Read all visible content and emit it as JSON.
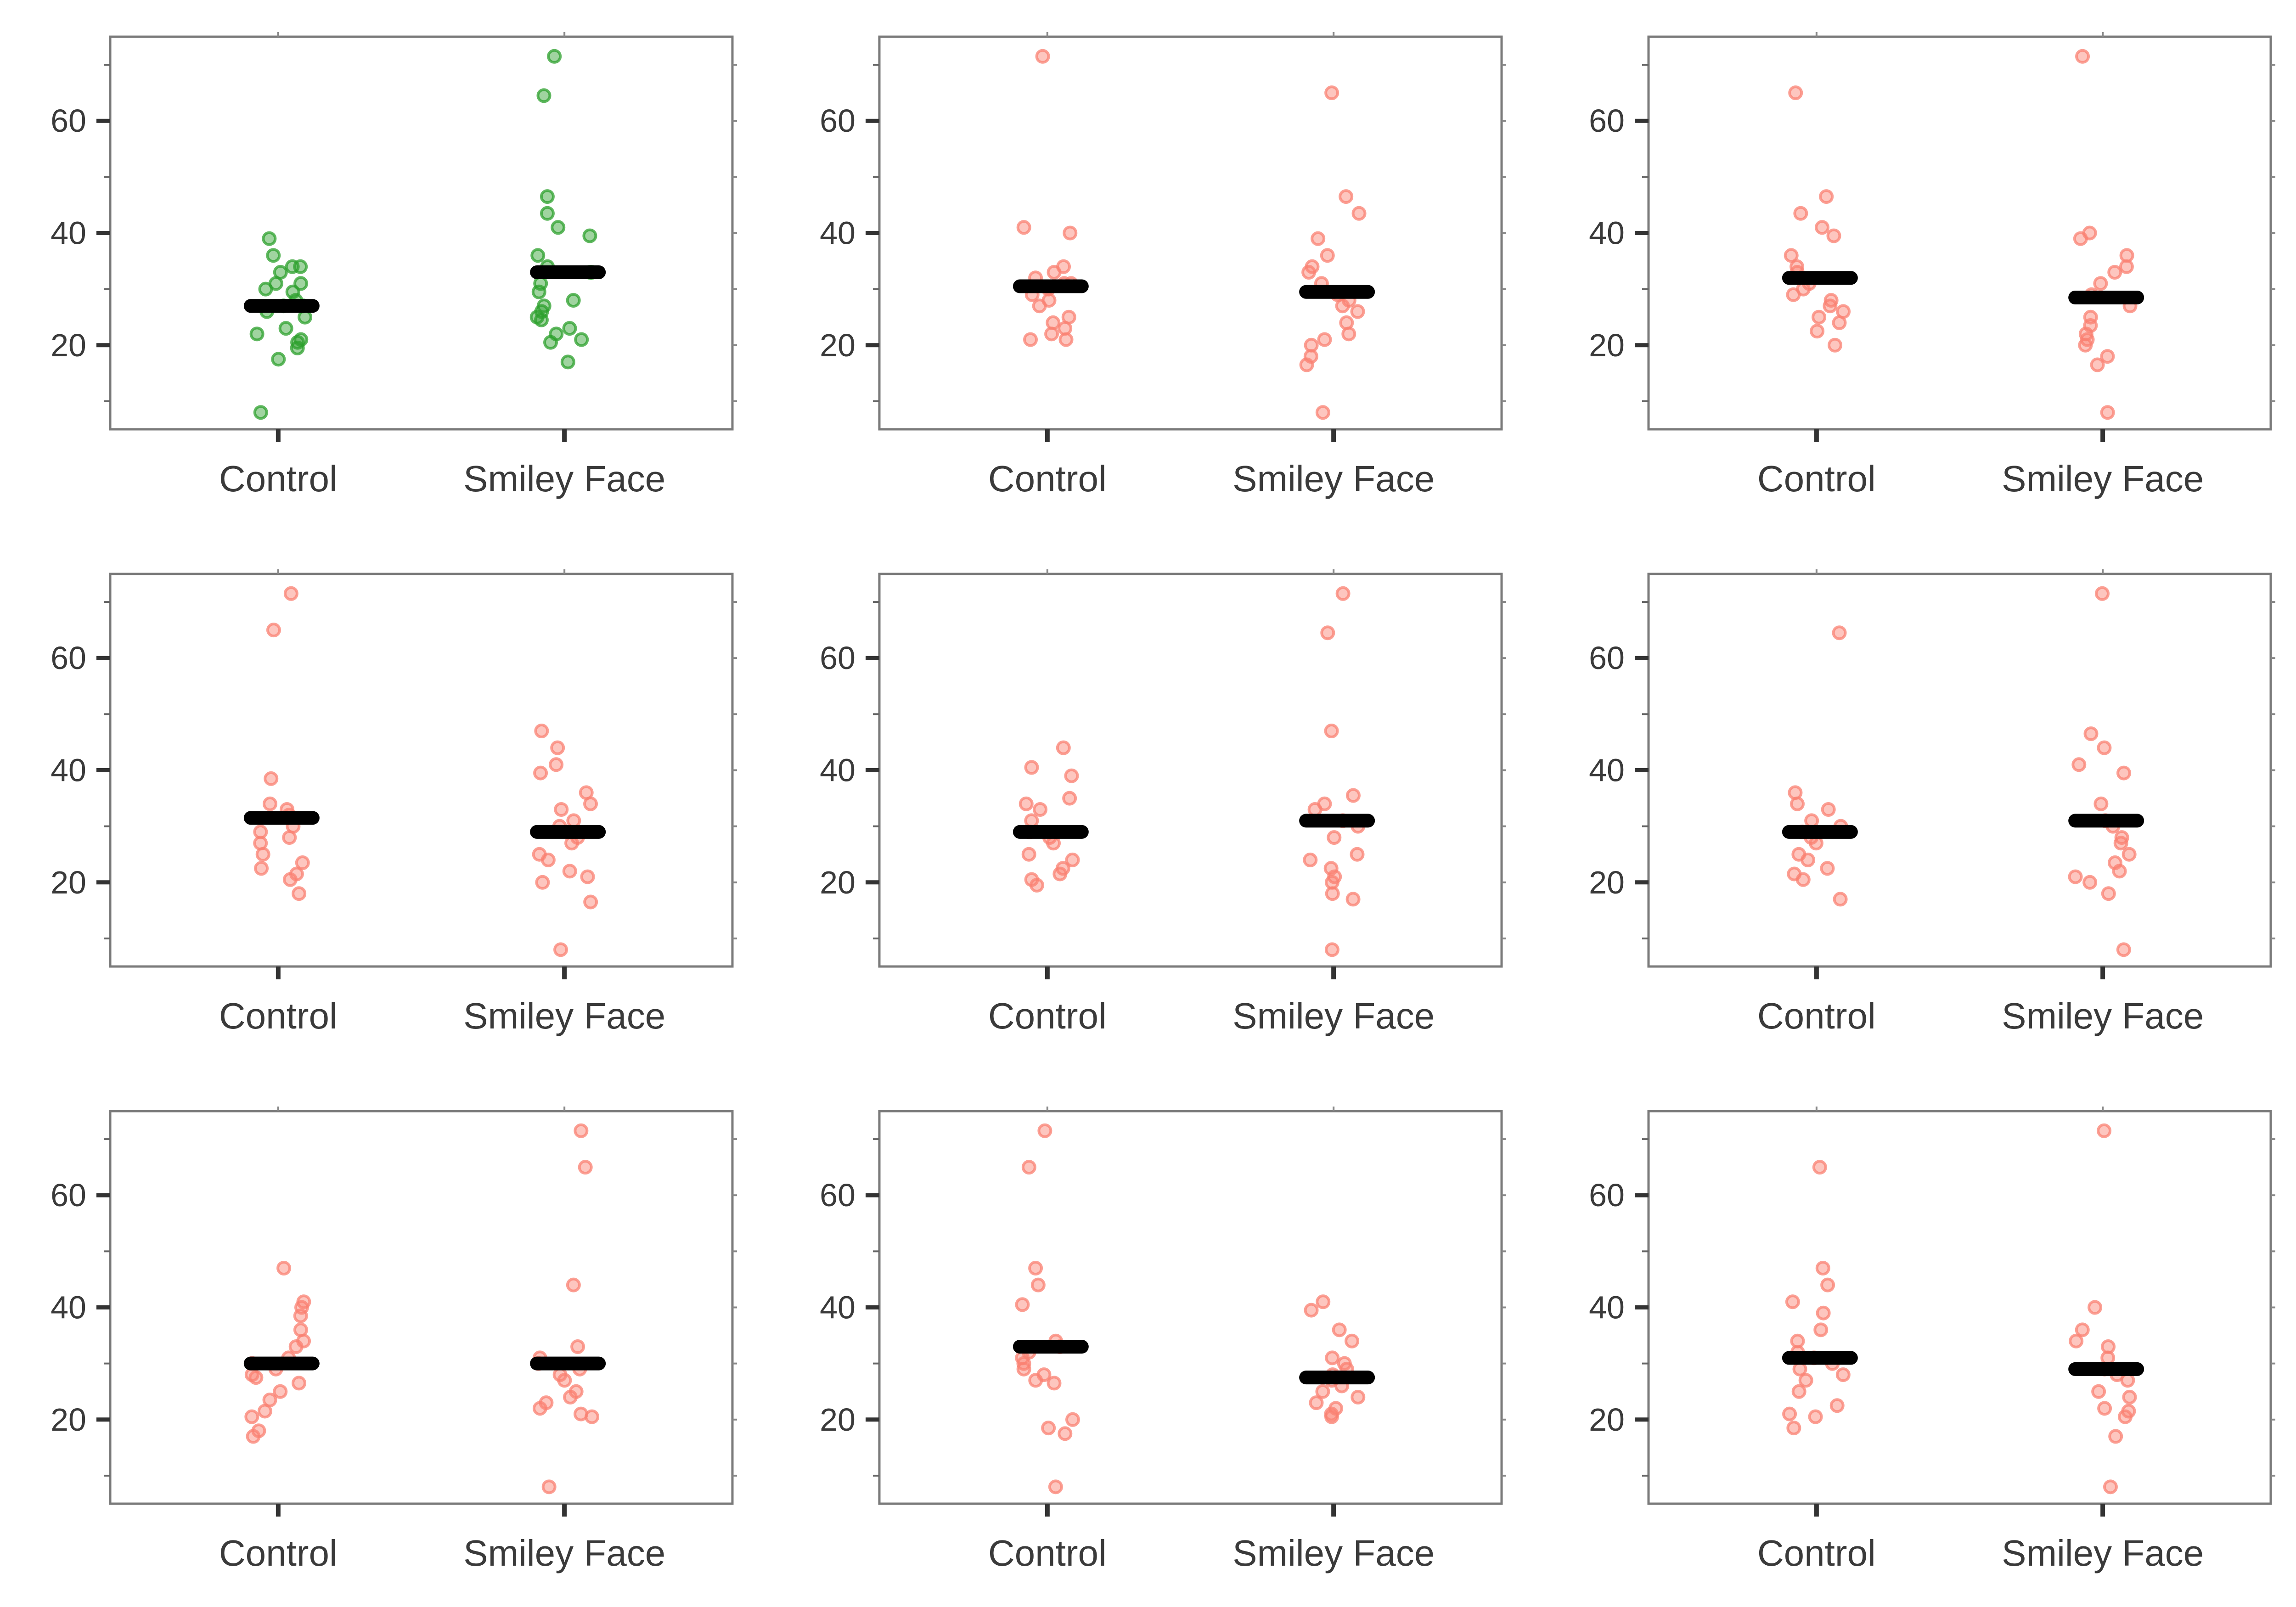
{
  "colors": {
    "observed_points": "#2ca02c",
    "permuted_points": "#fa8072",
    "mean_marker": "#000000",
    "axis_frame": "#7a7a7a",
    "tick_text": "#3a3a3a"
  },
  "chart_data": [
    {
      "type": "scatter",
      "variant": "observed",
      "categories": [
        "Control",
        "Smiley Face"
      ],
      "ylim": [
        5,
        75
      ],
      "yticks": [
        20,
        40,
        60
      ],
      "series": [
        {
          "name": "Control",
          "values": [
            8,
            17.5,
            19.5,
            20.5,
            21,
            22,
            23,
            25,
            26,
            27,
            27,
            28,
            29.5,
            30,
            31,
            31,
            33,
            34,
            34,
            36,
            39
          ],
          "mean": 27
        },
        {
          "name": "Smiley Face",
          "values": [
            17,
            20.5,
            21,
            22,
            23,
            24.5,
            25,
            26,
            27,
            28,
            29.5,
            31,
            33,
            33,
            34,
            36,
            39.5,
            41,
            43.5,
            46.5,
            64.5,
            71.5
          ],
          "mean": 33
        }
      ]
    },
    {
      "type": "scatter",
      "variant": "permuted",
      "categories": [
        "Control",
        "Smiley Face"
      ],
      "ylim": [
        5,
        75
      ],
      "yticks": [
        20,
        40,
        60
      ],
      "series": [
        {
          "name": "Control",
          "values": [
            21,
            21,
            22,
            23,
            24,
            25,
            27,
            28,
            29,
            30,
            31,
            31,
            32,
            33,
            34,
            40,
            41,
            71.5
          ],
          "mean": 30.5
        },
        {
          "name": "Smiley Face",
          "values": [
            8,
            16.5,
            18,
            20,
            21,
            22,
            24,
            26,
            27,
            28,
            29,
            31,
            33,
            34,
            36,
            39,
            43.5,
            46.5,
            65
          ],
          "mean": 29.5
        }
      ]
    },
    {
      "type": "scatter",
      "variant": "permuted",
      "categories": [
        "Control",
        "Smiley Face"
      ],
      "ylim": [
        5,
        75
      ],
      "yticks": [
        20,
        40,
        60
      ],
      "series": [
        {
          "name": "Control",
          "values": [
            20,
            22.5,
            24,
            25,
            26,
            27,
            28,
            29,
            30,
            31,
            33,
            34,
            36,
            39.5,
            41,
            43.5,
            46.5,
            65
          ],
          "mean": 32
        },
        {
          "name": "Smiley Face",
          "values": [
            8,
            16.5,
            18,
            20,
            21,
            22,
            23.5,
            25,
            27,
            29,
            31,
            33,
            34,
            36,
            39,
            40,
            71.5
          ],
          "mean": 28.5
        }
      ]
    },
    {
      "type": "scatter",
      "variant": "permuted",
      "categories": [
        "Control",
        "Smiley Face"
      ],
      "ylim": [
        5,
        75
      ],
      "yticks": [
        20,
        40,
        60
      ],
      "series": [
        {
          "name": "Control",
          "values": [
            18,
            20.5,
            21.5,
            22.5,
            23.5,
            25,
            27,
            28,
            29,
            30,
            32,
            33,
            34,
            38.5,
            65,
            71.5
          ],
          "mean": 31.5
        },
        {
          "name": "Smiley Face",
          "values": [
            8,
            16.5,
            20,
            21,
            22,
            24,
            25,
            27,
            28,
            30,
            31,
            33,
            34,
            36,
            39.5,
            41,
            44,
            47
          ],
          "mean": 29
        }
      ]
    },
    {
      "type": "scatter",
      "variant": "permuted",
      "categories": [
        "Control",
        "Smiley Face"
      ],
      "ylim": [
        5,
        75
      ],
      "yticks": [
        20,
        40,
        60
      ],
      "series": [
        {
          "name": "Control",
          "values": [
            19.5,
            20.5,
            21.5,
            22.5,
            24,
            25,
            27,
            28,
            29,
            31,
            33,
            34,
            35,
            39,
            40.5,
            44
          ],
          "mean": 29
        },
        {
          "name": "Smiley Face",
          "values": [
            8,
            17,
            18,
            20,
            21,
            22.5,
            24,
            25,
            28,
            30,
            31,
            33,
            34,
            35.5,
            47,
            64.5,
            71.5
          ],
          "mean": 31
        }
      ]
    },
    {
      "type": "scatter",
      "variant": "permuted",
      "categories": [
        "Control",
        "Smiley Face"
      ],
      "ylim": [
        5,
        75
      ],
      "yticks": [
        20,
        40,
        60
      ],
      "series": [
        {
          "name": "Control",
          "values": [
            17,
            20.5,
            21.5,
            22.5,
            24,
            25,
            27,
            28,
            29,
            30,
            31,
            33,
            34,
            36,
            64.5
          ],
          "mean": 29
        },
        {
          "name": "Smiley Face",
          "values": [
            8,
            18,
            20,
            21,
            22,
            23.5,
            25,
            27,
            28,
            30,
            31,
            34,
            39.5,
            41,
            44,
            46.5,
            71.5
          ],
          "mean": 31
        }
      ]
    },
    {
      "type": "scatter",
      "variant": "permuted",
      "categories": [
        "Control",
        "Smiley Face"
      ],
      "ylim": [
        5,
        75
      ],
      "yticks": [
        20,
        40,
        60
      ],
      "series": [
        {
          "name": "Control",
          "values": [
            17,
            18,
            20.5,
            21.5,
            23.5,
            25,
            26.5,
            27.5,
            28,
            29,
            30,
            31,
            33,
            34,
            36,
            38.5,
            40,
            41,
            47
          ],
          "mean": 30
        },
        {
          "name": "Smiley Face",
          "values": [
            8,
            20.5,
            21,
            22,
            23,
            24,
            25,
            27,
            28,
            29,
            30,
            31,
            33,
            44,
            65,
            71.5
          ],
          "mean": 30
        }
      ]
    },
    {
      "type": "scatter",
      "variant": "permuted",
      "categories": [
        "Control",
        "Smiley Face"
      ],
      "ylim": [
        5,
        75
      ],
      "yticks": [
        20,
        40,
        60
      ],
      "series": [
        {
          "name": "Control",
          "values": [
            8,
            17.5,
            18.5,
            20,
            26.5,
            27,
            28,
            29,
            30,
            31,
            32,
            33,
            34,
            40.5,
            44,
            47,
            65,
            71.5
          ],
          "mean": 33
        },
        {
          "name": "Smiley Face",
          "values": [
            20.5,
            21,
            22,
            23,
            24,
            25,
            26,
            27,
            28,
            29,
            30,
            31,
            34,
            36,
            39.5,
            41
          ],
          "mean": 27.5
        }
      ]
    },
    {
      "type": "scatter",
      "variant": "permuted",
      "categories": [
        "Control",
        "Smiley Face"
      ],
      "ylim": [
        5,
        75
      ],
      "yticks": [
        20,
        40,
        60
      ],
      "series": [
        {
          "name": "Control",
          "values": [
            18.5,
            20.5,
            21,
            22.5,
            25,
            27,
            28,
            29,
            30,
            31,
            32,
            34,
            36,
            39,
            41,
            44,
            47,
            65
          ],
          "mean": 31
        },
        {
          "name": "Smiley Face",
          "values": [
            8,
            17,
            20.5,
            21.5,
            22,
            24,
            25,
            27,
            28,
            29,
            31,
            33,
            34,
            36,
            40,
            71.5
          ],
          "mean": 29
        }
      ]
    }
  ]
}
